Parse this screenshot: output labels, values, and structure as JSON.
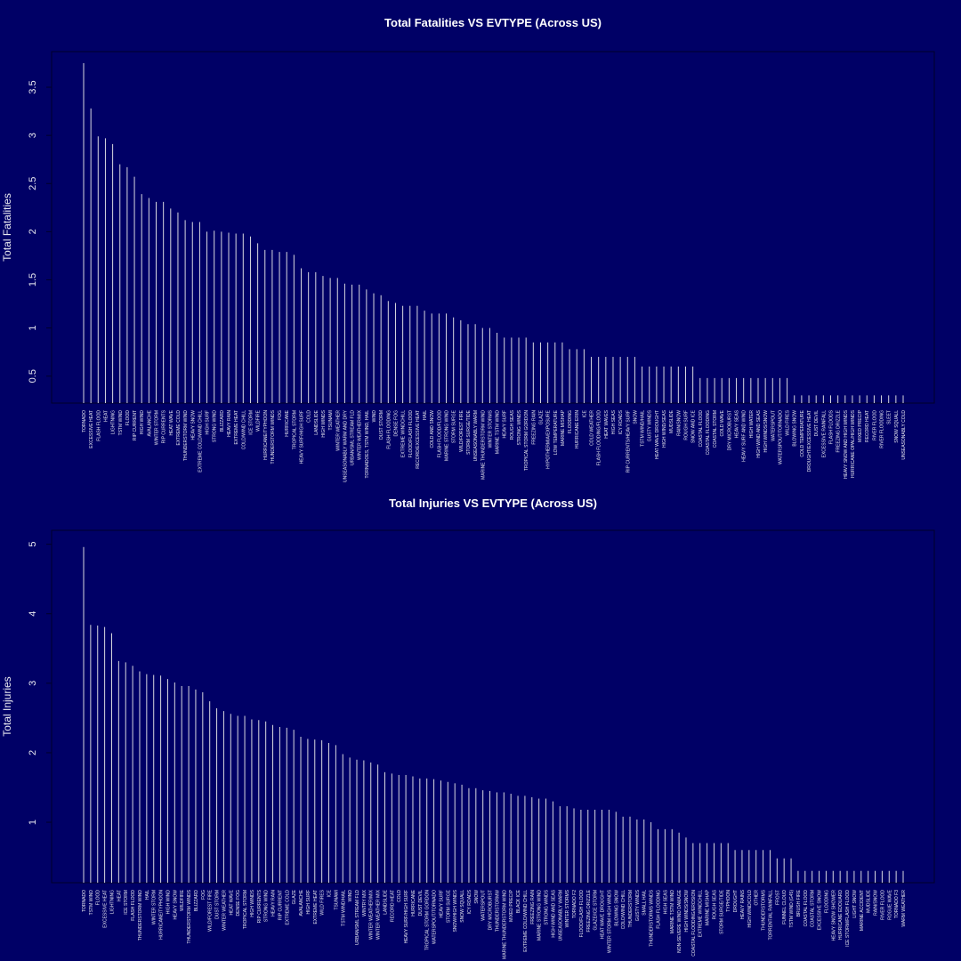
{
  "chart_data": [
    {
      "type": "bar",
      "title": "Total Fatalities VS EVTYPE (Across US)",
      "y_label": "Total Fatalities",
      "color": "#d8d8e0",
      "ylim": [
        0.22,
        3.87
      ],
      "yticks": [
        0.5,
        1.0,
        1.5,
        2.0,
        2.5,
        3.0,
        3.5
      ],
      "categories": [
        "TORNADO",
        "EXCESSIVE HEAT",
        "FLASH FLOOD",
        "HEAT",
        "LIGHTNING",
        "TSTM WIND",
        "FLOOD",
        "RIP CURRENT",
        "HIGH WIND",
        "AVALANCHE",
        "WINTER STORM",
        "RIP CURRENTS",
        "HEAT WAVE",
        "EXTREME COLD",
        "THUNDERSTORM WIND",
        "HEAVY SNOW",
        "EXTREME COLD/WIND CHILL",
        "HIGH SURF",
        "STRONG WIND",
        "BLIZZARD",
        "HEAVY RAIN",
        "EXTREME HEAT",
        "COLD/WIND CHILL",
        "ICE STORM",
        "WILDFIRE",
        "HURRICANE/TYPHOON",
        "THUNDERSTORM WINDS",
        "FOG",
        "HURRICANE",
        "TROPICAL STORM",
        "HEAVY SURF/HIGH SURF",
        "COLD",
        "LANDSLIDE",
        "HIGH WINDS",
        "TSUNAMI",
        "WINTER WEATHER",
        "UNSEASONABLY WARM AND DRY",
        "URBAN/SML STREAM FLD",
        "WINTER WEATHER/MIX",
        "TORNADOES, TSTM WIND, HAIL",
        "WIND",
        "DUST STORM",
        "FLASH FLOODING",
        "DENSE FOG",
        "EXTREME WINDCHILL",
        "FLOOD/FLASH FLOOD",
        "RECORD/EXCESSIVE HEAT",
        "HAIL",
        "COLD AND SNOW",
        "FLASH FLOOD/FLOOD",
        "MARINE STRONG WIND",
        "STORM SURGE",
        "WILD/FOREST FIRE",
        "STORM SURGE/TIDE",
        "UNSEASONABLY WARM",
        "MARINE THUNDERSTORM WIND",
        "WINTER STORMS",
        "MARINE TSTM WIND",
        "HEAVY SURF",
        "ROUGH SEAS",
        "STRONG WINDS",
        "TROPICAL STORM GORDON",
        "FREEZING RAIN",
        "GLAZE",
        "HYPOTHERMIA/EXPOSURE",
        "LOW TEMPERATURE",
        "MARINE MISHAP",
        "FLOODING",
        "HURRICANE ERIN",
        "ICE",
        "COLD WEATHER",
        "FLASH FLOODING/FLOOD",
        "HEAT WAVES",
        "HIGH SEAS",
        "ICY ROADS",
        "RIP CURRENTS/HEAVY SURF",
        "SNOW",
        "TSTM WIND/HAIL",
        "GUSTY WINDS",
        "HEAT WAVE DROUGHT",
        "HIGH WIND/SEAS",
        "MUDSLIDE",
        "RAIN/SNOW",
        "ROUGH SURF",
        "SNOW AND ICE",
        "COASTAL FLOOD",
        "COASTAL FLOODING",
        "COASTAL STORM",
        "COLD WAVE",
        "DRY MICROBURST",
        "HEAVY SEAS",
        "HEAVY SURF AND WIND",
        "HIGH WATER",
        "HIGH WIND AND SEAS",
        "HIGH WINDS/SNOW",
        "WATERSPOUT",
        "WATERSPOUT/TORNADO",
        "WILD FIRES",
        "BLOWING SNOW",
        "COLD TEMPERATURE",
        "DROUGHT/EXCESSIVE HEAT",
        "DUST DEVIL",
        "EXCESSIVE RAINFALL",
        "FLASH FLOODS",
        "FREEZING DRIZZLE",
        "HEAVY SNOW AND HIGH WINDS",
        "HURRICANE OPAL/HIGH WINDS",
        "MIXED PRECIP",
        "RECORD HEAT",
        "RIVER FLOOD",
        "RIVER FLOODING",
        "SLEET",
        "SNOW SQUALL",
        "UNSEASONABLY COLD"
      ],
      "values": [
        3.75,
        3.28,
        2.99,
        2.97,
        2.91,
        2.7,
        2.67,
        2.57,
        2.39,
        2.35,
        2.31,
        2.31,
        2.24,
        2.2,
        2.12,
        2.1,
        2.1,
        2.0,
        2.01,
        2.0,
        1.99,
        1.98,
        1.98,
        1.95,
        1.88,
        1.81,
        1.81,
        1.79,
        1.79,
        1.76,
        1.62,
        1.58,
        1.58,
        1.54,
        1.52,
        1.52,
        1.46,
        1.45,
        1.45,
        1.4,
        1.36,
        1.34,
        1.28,
        1.26,
        1.23,
        1.23,
        1.23,
        1.18,
        1.15,
        1.15,
        1.15,
        1.11,
        1.08,
        1.04,
        1.04,
        1.0,
        1.0,
        0.95,
        0.9,
        0.9,
        0.9,
        0.9,
        0.85,
        0.85,
        0.85,
        0.85,
        0.85,
        0.78,
        0.78,
        0.78,
        0.7,
        0.7,
        0.7,
        0.7,
        0.7,
        0.7,
        0.7,
        0.6,
        0.6,
        0.6,
        0.6,
        0.6,
        0.6,
        0.6,
        0.6,
        0.48,
        0.48,
        0.48,
        0.48,
        0.48,
        0.48,
        0.48,
        0.48,
        0.48,
        0.48,
        0.48,
        0.48,
        0.48,
        0.3,
        0.3,
        0.3,
        0.3,
        0.3,
        0.3,
        0.3,
        0.3,
        0.3,
        0.3,
        0.3,
        0.3,
        0.3,
        0.3,
        0.3,
        0.3
      ]
    },
    {
      "type": "bar",
      "title": "Total Injuries VS EVTYPE (Across US)",
      "y_label": "Total Injuries",
      "color": "#d8d8e0",
      "ylim": [
        0.13,
        5.2
      ],
      "yticks": [
        1,
        2,
        3,
        4,
        5
      ],
      "categories": [
        "TORNADO",
        "TSTM WIND",
        "FLOOD",
        "EXCESSIVE HEAT",
        "LIGHTNING",
        "HEAT",
        "ICE STORM",
        "FLASH FLOOD",
        "THUNDERSTORM WIND",
        "HAIL",
        "WINTER STORM",
        "HURRICANE/TYPHOON",
        "HIGH WIND",
        "HEAVY SNOW",
        "WILDFIRE",
        "THUNDERSTORM WINDS",
        "BLIZZARD",
        "FOG",
        "WILD/FOREST FIRE",
        "DUST STORM",
        "WINTER WEATHER",
        "HEAT WAVE",
        "DENSE FOG",
        "TROPICAL STORM",
        "HIGH WINDS",
        "RIP CURRENTS",
        "STRONG WIND",
        "HEAVY RAIN",
        "RIP CURRENT",
        "EXTREME COLD",
        "GLAZE",
        "AVALANCHE",
        "HIGH SURF",
        "EXTREME HEAT",
        "WILD FIRES",
        "ICE",
        "TSUNAMI",
        "TSTM WIND/HAIL",
        "WIND",
        "URBAN/SML STREAM FLD",
        "WINTRY MIX",
        "WINTER WEATHER/MIX",
        "WINTER WEATHER MIX",
        "LANDSLIDE",
        "RECORD HEAT",
        "COLD",
        "HEAVY SURF/HIGH SURF",
        "HURRICANE",
        "DUST DEVIL",
        "TROPICAL STORM GORDON",
        "WATERSPOUT/TORNADO",
        "HEAVY SURF",
        "STORM SURGE",
        "SNOW/HIGH WINDS",
        "SNOW SQUALL",
        "ICY ROADS",
        "SNOW",
        "WATERSPOUT",
        "DRY MICROBURST",
        "THUNDERSTORMW",
        "MARINE THUNDERSTORM WIND",
        "MIXED PRECIP",
        "BLACK ICE",
        "EXTREME COLD/WIND CHILL",
        "FREEZING RAIN",
        "MARINE STRONG WIND",
        "STRONG WINDS",
        "HIGH WIND AND SEAS",
        "UNSEASONABLY WARM",
        "WINTER STORMS",
        "TORNADO F2",
        "FLOOD/FLASH FLOOD",
        "FREEZING DRIZZLE",
        "GLAZE/ICE STORM",
        "HEAT WAVE DROUGHT",
        "WINTER STORM HIGH WINDS",
        "BLOWING SNOW",
        "COLD/WIND CHILL",
        "THUNDERSTORM",
        "GUSTY WINDS",
        "SMALL HAIL",
        "THUNDERSTORMS WINDS",
        "FLASH FLOODING",
        "HIGH SEAS",
        "MARINE TSTM WIND",
        "NON-SEVERE WIND DAMAGE",
        "HIGH WINDS/SNOW",
        "COASTAL FLOODING/EROSION",
        "EXTREME WINDCHILL",
        "MARINE MISHAP",
        "ROUGH SEAS",
        "STORM SURGE/TIDE",
        "TYPHOON",
        "DROUGHT",
        "HEAVY RAINS",
        "HIGH WIND/COLD",
        "OTHER",
        "THUNDERSTORMS",
        "TORRENTIAL RAINFALL",
        "FROST",
        "FUNNEL CLOUD",
        "TSTM WIND (G45)",
        "BRUSH FIRE",
        "COASTAL FLOOD",
        "COASTAL STORM",
        "EXCESSIVE SNOW",
        "FLOODING",
        "HEAVY SNOW SHOWER",
        "HURRICANE EDOUARD",
        "ICE STORM/FLASH FLOOD",
        "LIGHT SNOW",
        "MARINE ACCIDENT",
        "MUDSLIDE",
        "RAIN/SNOW",
        "RIVER FLOOD",
        "ROGUE WAVE",
        "TORNADO F3",
        "WARM WEATHER"
      ],
      "values": [
        4.96,
        3.84,
        3.83,
        3.81,
        3.72,
        3.32,
        3.3,
        3.25,
        3.17,
        3.13,
        3.12,
        3.11,
        3.06,
        3.01,
        2.96,
        2.96,
        2.91,
        2.87,
        2.74,
        2.64,
        2.6,
        2.56,
        2.53,
        2.53,
        2.48,
        2.47,
        2.45,
        2.4,
        2.37,
        2.36,
        2.33,
        2.23,
        2.2,
        2.19,
        2.18,
        2.14,
        2.11,
        1.98,
        1.93,
        1.9,
        1.89,
        1.86,
        1.83,
        1.72,
        1.7,
        1.68,
        1.68,
        1.66,
        1.63,
        1.63,
        1.62,
        1.6,
        1.58,
        1.56,
        1.54,
        1.49,
        1.49,
        1.46,
        1.45,
        1.43,
        1.43,
        1.41,
        1.38,
        1.38,
        1.36,
        1.34,
        1.34,
        1.3,
        1.23,
        1.23,
        1.2,
        1.18,
        1.18,
        1.18,
        1.18,
        1.18,
        1.15,
        1.08,
        1.08,
        1.04,
        1.04,
        1.0,
        0.9,
        0.9,
        0.9,
        0.85,
        0.78,
        0.7,
        0.7,
        0.7,
        0.7,
        0.7,
        0.7,
        0.6,
        0.6,
        0.6,
        0.6,
        0.6,
        0.6,
        0.48,
        0.48,
        0.48,
        0.3,
        0.3,
        0.3,
        0.3,
        0.3,
        0.3,
        0.3,
        0.3,
        0.3,
        0.3,
        0.3,
        0.3,
        0.3,
        0.3,
        0.3,
        0.3
      ]
    }
  ]
}
